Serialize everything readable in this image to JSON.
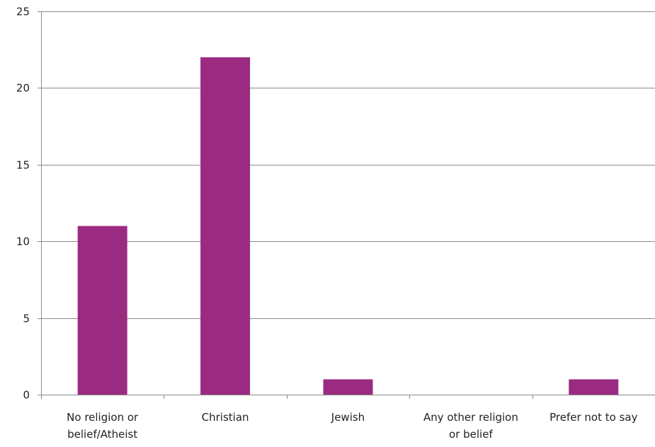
{
  "chart_data": {
    "type": "bar",
    "categories": [
      [
        "No religion or",
        "belief/Atheist"
      ],
      [
        "Christian"
      ],
      [
        "Jewish"
      ],
      [
        "Any other religion",
        "or belief"
      ],
      [
        "Prefer not to say"
      ]
    ],
    "values": [
      11,
      22,
      1,
      0,
      1
    ],
    "ylim": [
      0,
      25
    ],
    "yticks": [
      "0",
      "5",
      "10",
      "15",
      "20",
      "25"
    ],
    "grid": true,
    "legend": "none",
    "bar_color": "#9b2b80",
    "gridline_color": "#8c8c8c",
    "axis_color": "#8c8c8c"
  }
}
